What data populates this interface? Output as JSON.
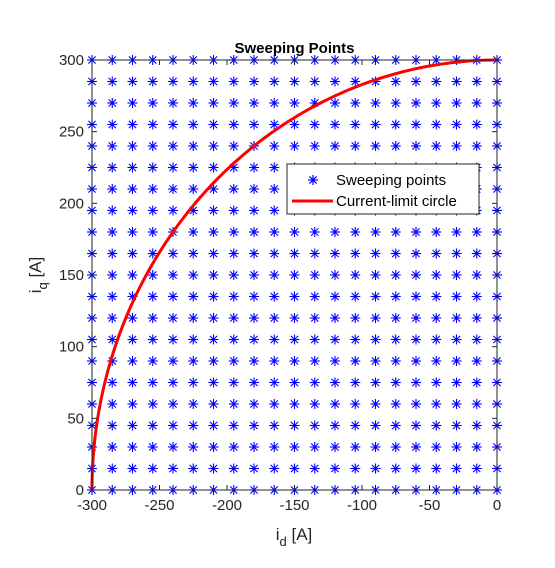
{
  "chart_data": {
    "type": "scatter",
    "title": "Sweeping Points",
    "xlabel": {
      "main": "i",
      "sub": "d",
      "unit": " [A]"
    },
    "ylabel": {
      "main": "i",
      "sub": "q",
      "unit": " [A]"
    },
    "xlim": [
      -300,
      0
    ],
    "ylim": [
      0,
      300
    ],
    "xticks": [
      -300,
      -250,
      -200,
      -150,
      -100,
      -50,
      0
    ],
    "yticks": [
      0,
      50,
      100,
      150,
      200,
      250,
      300
    ],
    "xtick_labels": [
      "-300",
      "-250",
      "-200",
      "-150",
      "-100",
      "-50",
      "0"
    ],
    "ytick_labels": [
      "0",
      "50",
      "100",
      "150",
      "200",
      "250",
      "300"
    ],
    "grid": false,
    "legend_position": "upper-right",
    "series": [
      {
        "name": "Sweeping points",
        "kind": "scatter",
        "marker": "asterisk",
        "color": "#0000ff",
        "x_range": {
          "start": -300,
          "stop": 0,
          "step": 15
        },
        "y_range": {
          "start": 0,
          "stop": 300,
          "step": 15
        }
      },
      {
        "name": "Current-limit circle",
        "kind": "line",
        "color": "#ff0000",
        "equation": "i_d^2 + i_q^2 = 300^2",
        "radius": 300,
        "x": [
          -300,
          -298,
          -295,
          -290,
          -285,
          -280,
          -270,
          -260,
          -250,
          -240,
          -225,
          -210,
          -200,
          -180,
          -160,
          -150,
          -120,
          -100,
          -80,
          -60,
          -40,
          -20,
          0
        ],
        "y": [
          0,
          34.6,
          54.6,
          76.8,
          93.7,
          107.7,
          130.8,
          149.7,
          165.8,
          180.0,
          198.4,
          214.2,
          223.6,
          240.0,
          253.8,
          259.8,
          275.0,
          282.8,
          289.1,
          293.9,
          297.3,
          299.3,
          300
        ]
      }
    ]
  },
  "legend": {
    "items": [
      {
        "label": "Sweeping points",
        "color": "#0000ff",
        "symbol": "asterisk"
      },
      {
        "label": "Current-limit circle",
        "color": "#ff0000",
        "symbol": "line"
      }
    ]
  }
}
